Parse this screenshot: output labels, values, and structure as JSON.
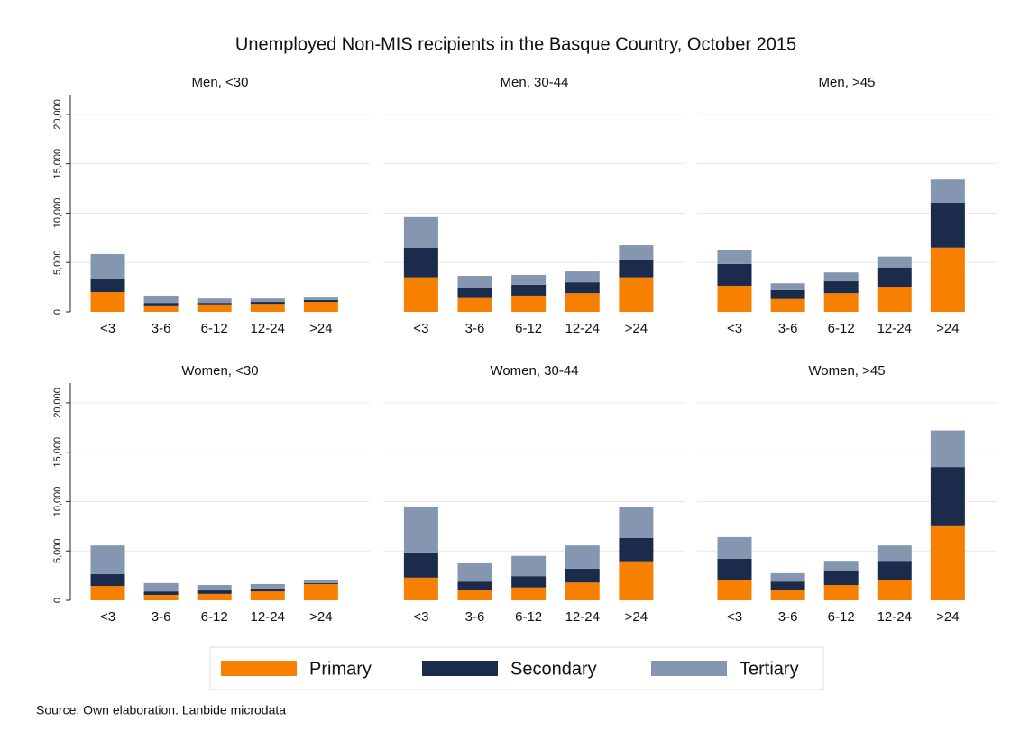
{
  "title": "Unemployed Non-MIS recipients in the Basque Country, October 2015",
  "source": "Source: Own elaboration. Lanbide microdata",
  "chart_data": [
    {
      "type": "bar",
      "stacked": true,
      "title": "Men, <30",
      "categories": [
        "<3",
        "3-6",
        "6-12",
        "12-24",
        ">24"
      ],
      "series": [
        {
          "name": "Primary",
          "color": "#f88000",
          "values": [
            2000,
            650,
            750,
            800,
            1000
          ]
        },
        {
          "name": "Secondary",
          "color": "#1a2b4c",
          "values": [
            1300,
            250,
            150,
            200,
            200
          ]
        },
        {
          "name": "Tertiary",
          "color": "#8496b0",
          "values": [
            2550,
            750,
            450,
            350,
            250
          ]
        }
      ],
      "ylim": [
        0,
        22000
      ],
      "yticks": [
        0,
        {
          "value": 5000,
          "label": "5,000"
        },
        {
          "value": 10000,
          "label": "10,000"
        },
        {
          "value": 15000,
          "label": "15,000"
        },
        {
          "value": 20000,
          "label": "20,000"
        }
      ],
      "grid": true
    },
    {
      "type": "bar",
      "stacked": true,
      "title": "Men, 30-44",
      "categories": [
        "<3",
        "3-6",
        "6-12",
        "12-24",
        ">24"
      ],
      "series": [
        {
          "color": "#f88000",
          "values": [
            3500,
            1400,
            1650,
            1900,
            3500
          ]
        },
        {
          "color": "#1a2b4c",
          "values": [
            3000,
            1000,
            1100,
            1100,
            1800
          ]
        },
        {
          "color": "#8496b0",
          "values": [
            3100,
            1250,
            1000,
            1100,
            1450
          ]
        }
      ],
      "ylim": [
        0,
        22000
      ],
      "yticks": [
        5000,
        10000,
        15000,
        20000
      ],
      "grid": true
    },
    {
      "type": "bar",
      "stacked": true,
      "title": "Men, >45",
      "categories": [
        "<3",
        "3-6",
        "6-12",
        "12-24",
        ">24"
      ],
      "series": [
        {
          "color": "#f88000",
          "values": [
            2650,
            1300,
            1900,
            2550,
            6500
          ]
        },
        {
          "color": "#1a2b4c",
          "values": [
            2200,
            900,
            1200,
            1950,
            4550
          ]
        },
        {
          "color": "#8496b0",
          "values": [
            1450,
            700,
            900,
            1100,
            2350
          ]
        }
      ],
      "ylim": [
        0,
        22000
      ],
      "yticks": [
        5000,
        10000,
        15000,
        20000
      ],
      "grid": true
    },
    {
      "type": "bar",
      "stacked": true,
      "title": "Women, <30",
      "categories": [
        "<3",
        "3-6",
        "6-12",
        "12-24",
        ">24"
      ],
      "series": [
        {
          "color": "#f88000",
          "values": [
            1450,
            550,
            650,
            900,
            1650
          ]
        },
        {
          "color": "#1a2b4c",
          "values": [
            1200,
            350,
            350,
            300,
            100
          ]
        },
        {
          "color": "#8496b0",
          "values": [
            2900,
            850,
            550,
            450,
            350
          ]
        }
      ],
      "ylim": [
        0,
        22000
      ],
      "yticks": [
        0,
        {
          "value": 5000,
          "label": "5,000"
        },
        {
          "value": 10000,
          "label": "10,000"
        },
        {
          "value": 15000,
          "label": "15,000"
        },
        {
          "value": 20000,
          "label": "20,000"
        }
      ],
      "grid": true
    },
    {
      "type": "bar",
      "stacked": true,
      "title": "Women, 30-44",
      "categories": [
        "<3",
        "3-6",
        "6-12",
        "12-24",
        ">24"
      ],
      "series": [
        {
          "color": "#f88000",
          "values": [
            2300,
            1000,
            1300,
            1800,
            3950
          ]
        },
        {
          "color": "#1a2b4c",
          "values": [
            2550,
            900,
            1150,
            1400,
            2350
          ]
        },
        {
          "color": "#8496b0",
          "values": [
            4650,
            1850,
            2050,
            2350,
            3100
          ]
        }
      ],
      "ylim": [
        0,
        22000
      ],
      "yticks": [
        5000,
        10000,
        15000,
        20000
      ],
      "grid": true
    },
    {
      "type": "bar",
      "stacked": true,
      "title": "Women, >45",
      "categories": [
        "<3",
        "3-6",
        "6-12",
        "12-24",
        ">24"
      ],
      "series": [
        {
          "color": "#f88000",
          "values": [
            2100,
            1000,
            1550,
            2100,
            7500
          ]
        },
        {
          "color": "#1a2b4c",
          "values": [
            2100,
            900,
            1450,
            1900,
            6000
          ]
        },
        {
          "color": "#8496b0",
          "values": [
            2200,
            850,
            1000,
            1550,
            3700
          ]
        }
      ],
      "ylim": [
        0,
        22000
      ],
      "yticks": [
        5000,
        10000,
        15000,
        20000
      ],
      "grid": true
    }
  ]
}
